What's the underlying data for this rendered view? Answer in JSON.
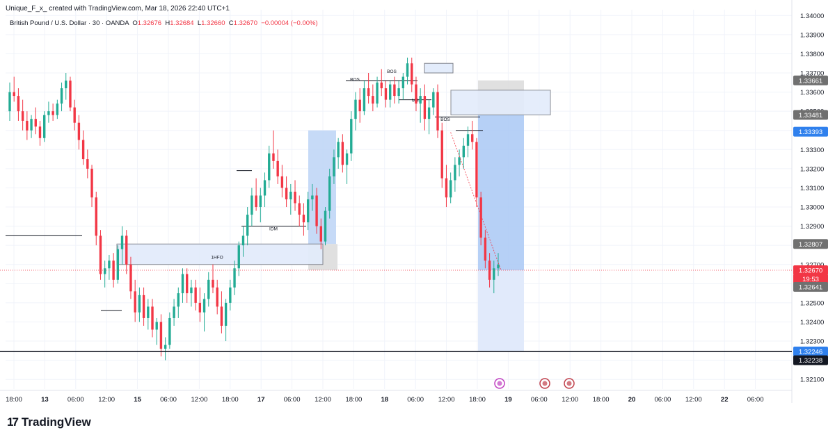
{
  "header": {
    "author_line": "Unique_F_x_ created with TradingView.com, Mar 18, 2026 22:40 UTC+1"
  },
  "symbol_line": {
    "name": "British Pound / U.S. Dollar · 30 · OANDA",
    "o_label": "O",
    "o": "1.32676",
    "h_label": "H",
    "h": "1.32684",
    "l_label": "L",
    "l": "1.32660",
    "c_label": "C",
    "c": "1.32670",
    "change": "−0.00004 (−0.00%)"
  },
  "footer": {
    "logo_text": "TradingView"
  },
  "colors": {
    "up": "#22ab94",
    "down": "#f23645",
    "zone_fill": "#e3ecfb",
    "zone_stroke": "#7c7f88",
    "grid": "#f0f3fa"
  },
  "chart_data": {
    "type": "candlestick",
    "ylim": [
      1.3205,
      1.3403
    ],
    "y_ticks": [
      "1.34000",
      "1.33900",
      "1.33800",
      "1.33700",
      "1.33600",
      "1.33500",
      "1.33400",
      "1.33300",
      "1.33200",
      "1.33100",
      "1.33000",
      "1.32900",
      "1.32800",
      "1.32700",
      "1.32600",
      "1.32500",
      "1.32400",
      "1.32300",
      "1.32200",
      "1.32100"
    ],
    "x_ticks": [
      {
        "label": "18:00",
        "bold": false
      },
      {
        "label": "13",
        "bold": true
      },
      {
        "label": "06:00",
        "bold": false
      },
      {
        "label": "12:00",
        "bold": false
      },
      {
        "label": "15",
        "bold": true
      },
      {
        "label": "06:00",
        "bold": false
      },
      {
        "label": "12:00",
        "bold": false
      },
      {
        "label": "18:00",
        "bold": false
      },
      {
        "label": "17",
        "bold": true
      },
      {
        "label": "06:00",
        "bold": false
      },
      {
        "label": "12:00",
        "bold": false
      },
      {
        "label": "18:00",
        "bold": false
      },
      {
        "label": "18",
        "bold": true
      },
      {
        "label": "06:00",
        "bold": false
      },
      {
        "label": "12:00",
        "bold": false
      },
      {
        "label": "18:00",
        "bold": false
      },
      {
        "label": "19",
        "bold": true
      },
      {
        "label": "06:00",
        "bold": false
      },
      {
        "label": "12:00",
        "bold": false
      },
      {
        "label": "18:00",
        "bold": false
      },
      {
        "label": "20",
        "bold": true
      },
      {
        "label": "06:00",
        "bold": false
      },
      {
        "label": "12:00",
        "bold": false
      },
      {
        "label": "22",
        "bold": true
      },
      {
        "label": "06:00",
        "bold": false
      }
    ],
    "price_labels": [
      {
        "text": "1.33661",
        "price": 1.33661,
        "bg": "#707070"
      },
      {
        "text": "1.33481",
        "price": 1.33481,
        "bg": "#707070"
      },
      {
        "text": "1.33393",
        "price": 1.33393,
        "bg": "#2f80ed"
      },
      {
        "text": "1.32807",
        "price": 1.32807,
        "bg": "#707070"
      },
      {
        "text": "1.32670",
        "price": 1.3267,
        "bg": "#f23645"
      },
      {
        "text": "19:53",
        "price": 1.32625,
        "bg": "#f23645"
      },
      {
        "text": "1.32641",
        "price": 1.32583,
        "bg": "#707070"
      },
      {
        "text": "1.32246",
        "price": 1.32246,
        "bg": "#2f80ed"
      },
      {
        "text": "1.32238",
        "price": 1.322,
        "bg": "#131722"
      }
    ],
    "annotations": [
      "BOS",
      "BOS",
      "MSS",
      "BOS",
      "IDM",
      "1HFO"
    ],
    "candles": [
      [
        1.335,
        1.3365,
        1.3345,
        1.336
      ],
      [
        1.336,
        1.3368,
        1.3355,
        1.3358
      ],
      [
        1.3358,
        1.3362,
        1.3345,
        1.335
      ],
      [
        1.335,
        1.3356,
        1.334,
        1.3345
      ],
      [
        1.3345,
        1.335,
        1.3335,
        1.334
      ],
      [
        1.334,
        1.3348,
        1.3336,
        1.3346
      ],
      [
        1.3346,
        1.3352,
        1.3338,
        1.3342
      ],
      [
        1.3342,
        1.3345,
        1.3332,
        1.3336
      ],
      [
        1.3336,
        1.335,
        1.3334,
        1.3348
      ],
      [
        1.3348,
        1.3355,
        1.3344,
        1.335
      ],
      [
        1.335,
        1.3354,
        1.3345,
        1.3348
      ],
      [
        1.3348,
        1.3356,
        1.3346,
        1.3354
      ],
      [
        1.3354,
        1.3365,
        1.335,
        1.3362
      ],
      [
        1.3362,
        1.337,
        1.3356,
        1.3366
      ],
      [
        1.3366,
        1.3368,
        1.335,
        1.3352
      ],
      [
        1.3352,
        1.3356,
        1.334,
        1.3344
      ],
      [
        1.3344,
        1.3348,
        1.333,
        1.3335
      ],
      [
        1.3335,
        1.334,
        1.3322,
        1.3325
      ],
      [
        1.3325,
        1.333,
        1.3315,
        1.332
      ],
      [
        1.332,
        1.3322,
        1.33,
        1.3305
      ],
      [
        1.3305,
        1.3308,
        1.328,
        1.3285
      ],
      [
        1.3285,
        1.3288,
        1.3262,
        1.3265
      ],
      [
        1.3265,
        1.3272,
        1.3258,
        1.3268
      ],
      [
        1.3268,
        1.3275,
        1.3262,
        1.3272
      ],
      [
        1.3272,
        1.3276,
        1.3258,
        1.3262
      ],
      [
        1.3262,
        1.328,
        1.326,
        1.3278
      ],
      [
        1.3278,
        1.329,
        1.327,
        1.3285
      ],
      [
        1.3285,
        1.3288,
        1.3265,
        1.327
      ],
      [
        1.327,
        1.3274,
        1.3252,
        1.3256
      ],
      [
        1.3256,
        1.3262,
        1.324,
        1.3245
      ],
      [
        1.3245,
        1.3258,
        1.324,
        1.3254
      ],
      [
        1.3254,
        1.3258,
        1.3238,
        1.3242
      ],
      [
        1.3242,
        1.3252,
        1.3236,
        1.3248
      ],
      [
        1.3248,
        1.3252,
        1.3232,
        1.3236
      ],
      [
        1.3236,
        1.3242,
        1.3228,
        1.324
      ],
      [
        1.324,
        1.3244,
        1.3222,
        1.3226
      ],
      [
        1.3226,
        1.3232,
        1.322,
        1.3228
      ],
      [
        1.3228,
        1.3245,
        1.3226,
        1.3242
      ],
      [
        1.3242,
        1.3252,
        1.3238,
        1.3248
      ],
      [
        1.3248,
        1.3258,
        1.3242,
        1.3255
      ],
      [
        1.3255,
        1.3268,
        1.325,
        1.3265
      ],
      [
        1.3265,
        1.3268,
        1.325,
        1.3255
      ],
      [
        1.3255,
        1.3262,
        1.3248,
        1.3258
      ],
      [
        1.3258,
        1.3262,
        1.3246,
        1.325
      ],
      [
        1.325,
        1.3258,
        1.324,
        1.3245
      ],
      [
        1.3245,
        1.3255,
        1.3235,
        1.3252
      ],
      [
        1.3252,
        1.3266,
        1.3248,
        1.3262
      ],
      [
        1.3262,
        1.327,
        1.3255,
        1.3258
      ],
      [
        1.3258,
        1.3262,
        1.3244,
        1.3248
      ],
      [
        1.3248,
        1.3256,
        1.3234,
        1.3238
      ],
      [
        1.3238,
        1.3252,
        1.323,
        1.325
      ],
      [
        1.325,
        1.3262,
        1.3246,
        1.3258
      ],
      [
        1.3258,
        1.3272,
        1.3254,
        1.3268
      ],
      [
        1.3268,
        1.3282,
        1.3264,
        1.328
      ],
      [
        1.328,
        1.329,
        1.3274,
        1.3285
      ],
      [
        1.3285,
        1.33,
        1.328,
        1.3296
      ],
      [
        1.3296,
        1.331,
        1.329,
        1.3306
      ],
      [
        1.3306,
        1.3315,
        1.3298,
        1.33
      ],
      [
        1.33,
        1.331,
        1.3292,
        1.3306
      ],
      [
        1.3306,
        1.3318,
        1.33,
        1.3314
      ],
      [
        1.3314,
        1.3332,
        1.331,
        1.3328
      ],
      [
        1.3328,
        1.334,
        1.332,
        1.3324
      ],
      [
        1.3324,
        1.333,
        1.3312,
        1.3316
      ],
      [
        1.3316,
        1.3322,
        1.3305,
        1.331
      ],
      [
        1.331,
        1.3316,
        1.33,
        1.3304
      ],
      [
        1.3304,
        1.3312,
        1.3296,
        1.3308
      ],
      [
        1.3308,
        1.3314,
        1.3298,
        1.3302
      ],
      [
        1.3302,
        1.3306,
        1.329,
        1.3296
      ],
      [
        1.3296,
        1.3302,
        1.3285,
        1.3292
      ],
      [
        1.3292,
        1.3308,
        1.3288,
        1.3304
      ],
      [
        1.3304,
        1.3312,
        1.3298,
        1.3306
      ],
      [
        1.3306,
        1.331,
        1.3286,
        1.329
      ],
      [
        1.329,
        1.3294,
        1.3278,
        1.3282
      ],
      [
        1.3282,
        1.33,
        1.328,
        1.3298
      ],
      [
        1.3298,
        1.332,
        1.3294,
        1.3316
      ],
      [
        1.3316,
        1.333,
        1.3312,
        1.3326
      ],
      [
        1.3326,
        1.3336,
        1.332,
        1.3334
      ],
      [
        1.3334,
        1.3338,
        1.3318,
        1.3322
      ],
      [
        1.3322,
        1.333,
        1.3312,
        1.3328
      ],
      [
        1.3328,
        1.335,
        1.3324,
        1.3346
      ],
      [
        1.3346,
        1.336,
        1.334,
        1.3356
      ],
      [
        1.3356,
        1.3362,
        1.3344,
        1.335
      ],
      [
        1.335,
        1.3366,
        1.3348,
        1.3362
      ],
      [
        1.3362,
        1.337,
        1.3354,
        1.3358
      ],
      [
        1.3358,
        1.3364,
        1.335,
        1.3354
      ],
      [
        1.3354,
        1.3368,
        1.3352,
        1.3365
      ],
      [
        1.3365,
        1.3372,
        1.3358,
        1.3362
      ],
      [
        1.3362,
        1.3366,
        1.3352,
        1.3356
      ],
      [
        1.3356,
        1.3366,
        1.3352,
        1.3364
      ],
      [
        1.3364,
        1.3368,
        1.3354,
        1.3358
      ],
      [
        1.3358,
        1.3366,
        1.3354,
        1.3362
      ],
      [
        1.3362,
        1.337,
        1.3356,
        1.3368
      ],
      [
        1.3368,
        1.3378,
        1.3364,
        1.3375
      ],
      [
        1.3375,
        1.3378,
        1.336,
        1.3364
      ],
      [
        1.3364,
        1.3368,
        1.335,
        1.3354
      ],
      [
        1.3354,
        1.3362,
        1.3344,
        1.3358
      ],
      [
        1.3358,
        1.3364,
        1.334,
        1.3346
      ],
      [
        1.3346,
        1.3356,
        1.3338,
        1.3352
      ],
      [
        1.3352,
        1.3362,
        1.3348,
        1.336
      ],
      [
        1.336,
        1.3364,
        1.3336,
        1.334
      ],
      [
        1.334,
        1.3344,
        1.331,
        1.3315
      ],
      [
        1.3315,
        1.3322,
        1.33,
        1.3305
      ],
      [
        1.3305,
        1.3318,
        1.3302,
        1.3314
      ],
      [
        1.3314,
        1.3326,
        1.3308,
        1.3322
      ],
      [
        1.3322,
        1.333,
        1.3316,
        1.3326
      ],
      [
        1.3326,
        1.3336,
        1.332,
        1.3332
      ],
      [
        1.3332,
        1.3342,
        1.3326,
        1.3338
      ],
      [
        1.3338,
        1.3345,
        1.333,
        1.3334
      ],
      [
        1.3334,
        1.3336,
        1.33,
        1.3305
      ],
      [
        1.3305,
        1.3308,
        1.328,
        1.3284
      ],
      [
        1.3284,
        1.3288,
        1.3268,
        1.3272
      ],
      [
        1.3272,
        1.3276,
        1.3258,
        1.3262
      ],
      [
        1.3262,
        1.3272,
        1.3255,
        1.3268
      ],
      [
        1.3268,
        1.3276,
        1.3264,
        1.327
      ]
    ]
  }
}
